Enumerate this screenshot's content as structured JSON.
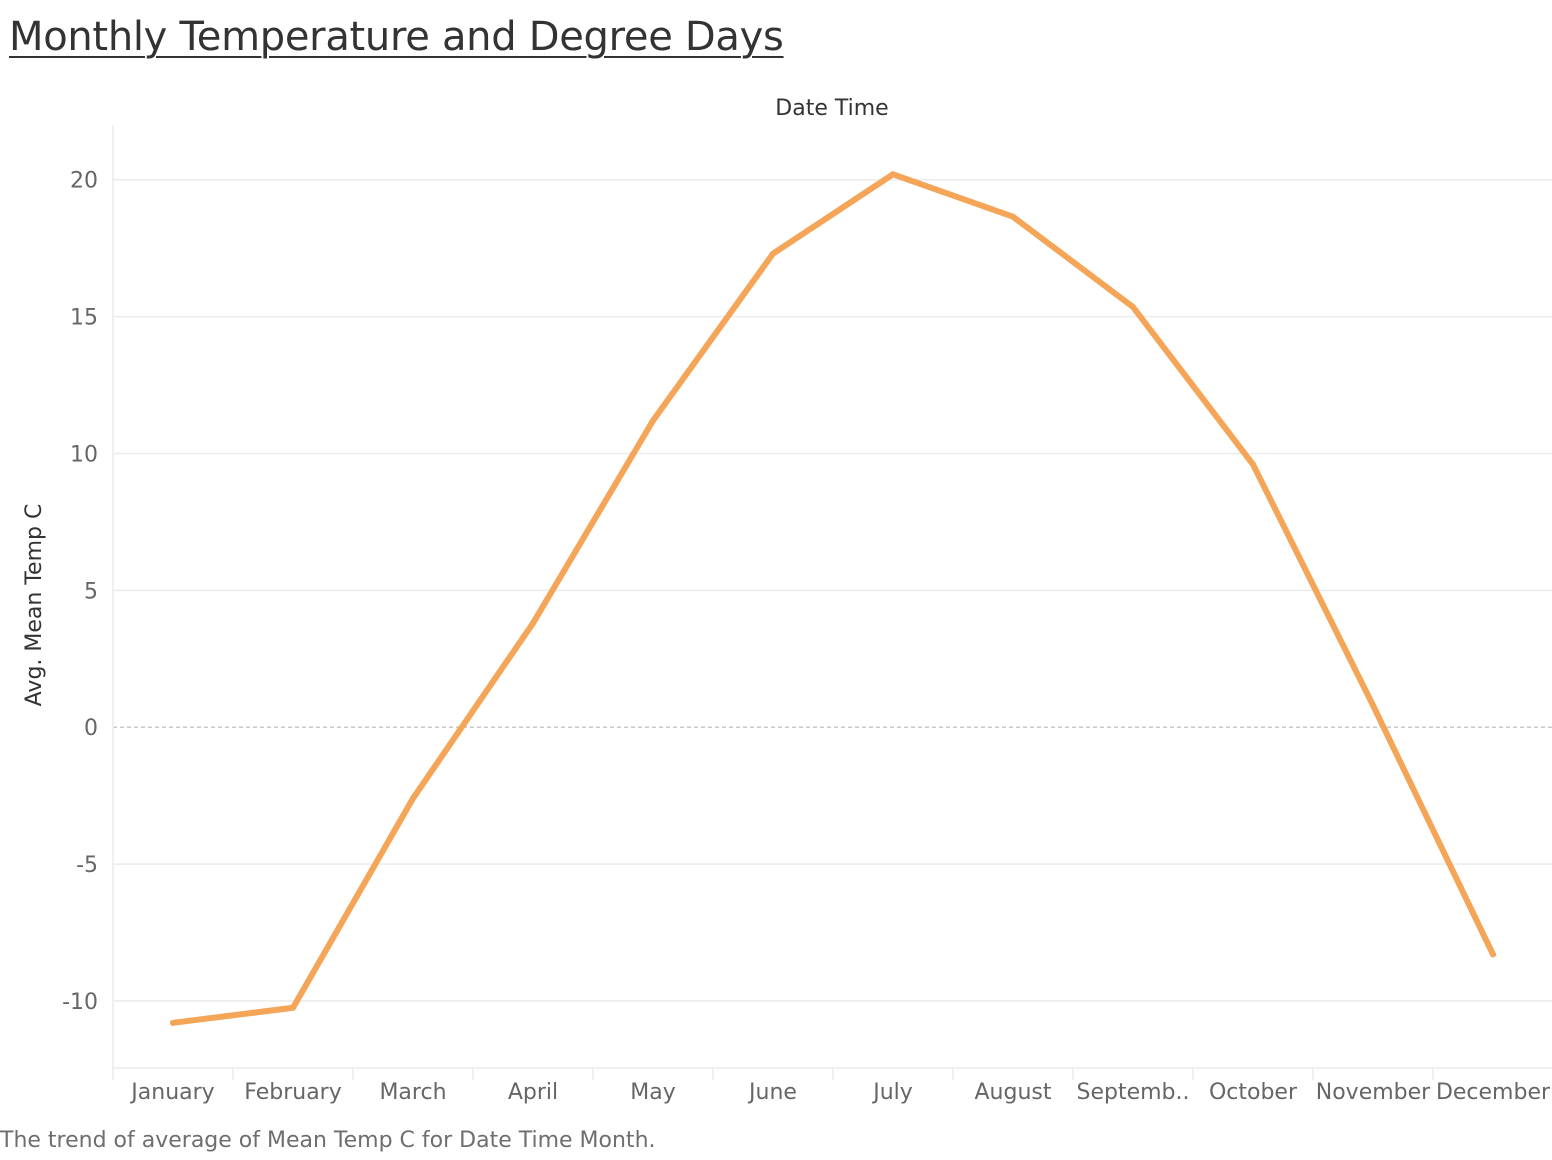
{
  "title": "Monthly Temperature and Degree Days",
  "caption": "The trend of average of Mean Temp C for Date Time Month.",
  "colors": {
    "line": "#f5a557",
    "grid": "#ebebeb",
    "zero_line": "#b5b5b5",
    "tick_text": "#666666",
    "axis_title": "#333333"
  },
  "chart_data": {
    "type": "line",
    "title": "Monthly Temperature and Degree Days",
    "xlabel": "Date Time",
    "ylabel": "Avg. Mean Temp C",
    "categories": [
      "January",
      "February",
      "March",
      "April",
      "May",
      "June",
      "July",
      "August",
      "Septemb..",
      "October",
      "November",
      "December"
    ],
    "series": [
      {
        "values": [
          -10.8,
          -10.25,
          -2.6,
          3.8,
          11.2,
          17.3,
          20.2,
          18.65,
          15.35,
          9.6,
          0.8,
          -8.3
        ]
      }
    ],
    "y_ticks": [
      -10,
      -5,
      0,
      5,
      10,
      15,
      20
    ],
    "ylim": [
      -12.45,
      22.0
    ],
    "grid": true,
    "zero_line": "dashed",
    "legend": "none"
  }
}
